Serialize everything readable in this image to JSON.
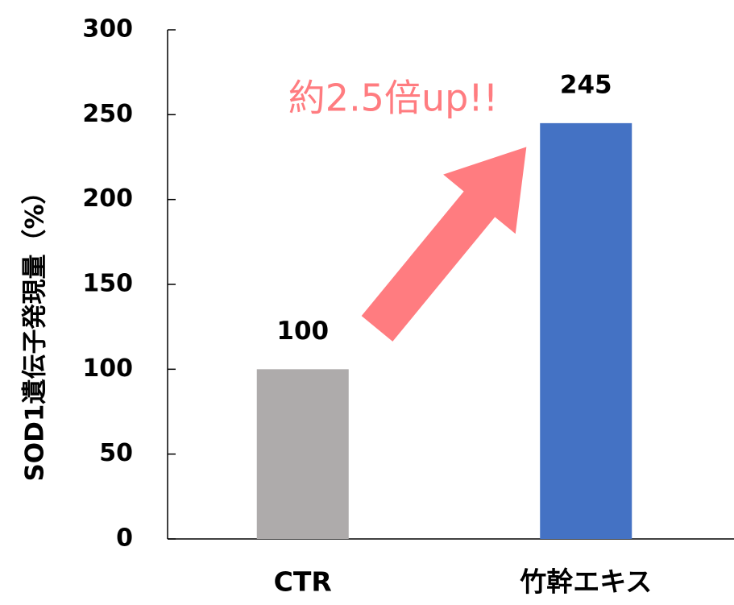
{
  "chart_data": {
    "type": "bar",
    "y_label": "SOD1遺伝子発現量（%）",
    "annotation": "約2.5倍up!!",
    "categories": [
      "CTR",
      "竹幹エキス"
    ],
    "values": [
      100,
      245
    ],
    "colors": [
      "#AEABAB",
      "#4472C4"
    ],
    "annotation_color": "#FF7C80",
    "ylim": [
      0,
      300
    ],
    "yticks": [
      0,
      50,
      100,
      150,
      200,
      250,
      300
    ],
    "grid": false
  }
}
